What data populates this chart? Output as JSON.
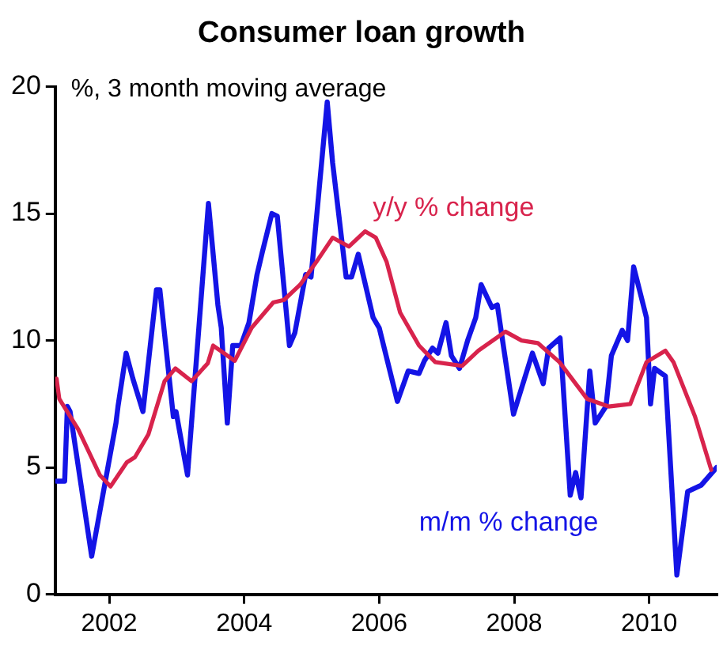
{
  "chart_data": {
    "type": "line",
    "title": "Consumer loan growth",
    "ylabel": "%, 3 month moving average",
    "xlim": [
      2001.2,
      2011.0
    ],
    "xticks": [
      2002,
      2004,
      2006,
      2008,
      2010
    ],
    "ylim": [
      0,
      20
    ],
    "yticks": [
      0,
      5,
      10,
      15,
      20
    ],
    "grid": false,
    "legend": false,
    "marker": "none",
    "line_style": "solid",
    "series": [
      {
        "name": "y/y % change",
        "color": "#d8234c",
        "x": [
          2001.22,
          2001.26,
          2001.54,
          2001.86,
          2002.02,
          2002.26,
          2002.38,
          2002.58,
          2002.82,
          2002.98,
          2003.22,
          2003.46,
          2003.54,
          2003.7,
          2003.86,
          2004.11,
          2004.43,
          2004.59,
          2004.83,
          2005.07,
          2005.31,
          2005.55,
          2005.79,
          2005.95,
          2006.11,
          2006.31,
          2006.59,
          2006.83,
          2007.23,
          2007.47,
          2007.87,
          2008.11,
          2008.35,
          2008.67,
          2009.08,
          2009.4,
          2009.72,
          2009.96,
          2010.24,
          2010.36,
          2010.68,
          2010.92
        ],
        "values": [
          8.5,
          7.7,
          6.5,
          4.7,
          4.25,
          5.2,
          5.4,
          6.3,
          8.4,
          8.9,
          8.4,
          9.1,
          9.8,
          9.5,
          9.2,
          10.5,
          11.5,
          11.6,
          12.2,
          13.1,
          14.05,
          13.7,
          14.3,
          14.05,
          13.1,
          11.1,
          9.8,
          9.15,
          9.0,
          9.6,
          10.35,
          10.0,
          9.9,
          9.15,
          7.7,
          7.4,
          7.5,
          9.15,
          9.6,
          9.15,
          7.0,
          4.9
        ]
      },
      {
        "name": "m/m % change",
        "color": "#1414e6",
        "x": [
          2001.22,
          2001.34,
          2001.38,
          2001.42,
          2001.74,
          2002.1,
          2002.13,
          2002.25,
          2002.35,
          2002.5,
          2002.7,
          2002.75,
          2002.95,
          2002.99,
          2003.16,
          2003.47,
          2003.61,
          2003.66,
          2003.75,
          2003.83,
          2003.95,
          2004.07,
          2004.19,
          2004.27,
          2004.41,
          2004.49,
          2004.67,
          2004.75,
          2004.91,
          2004.99,
          2005.23,
          2005.31,
          2005.51,
          2005.59,
          2005.69,
          2005.91,
          2006.0,
          2006.27,
          2006.43,
          2006.59,
          2006.67,
          2006.79,
          2006.87,
          2006.99,
          2007.07,
          2007.19,
          2007.31,
          2007.43,
          2007.51,
          2007.67,
          2007.75,
          2007.99,
          2008.27,
          2008.43,
          2008.51,
          2008.68,
          2008.83,
          2008.91,
          2008.99,
          2009.12,
          2009.2,
          2009.36,
          2009.44,
          2009.6,
          2009.68,
          2009.77,
          2009.96,
          2010.02,
          2010.08,
          2010.24,
          2010.41,
          2010.57,
          2010.77,
          2011.0
        ],
        "values": [
          4.46,
          4.46,
          7.4,
          7.2,
          1.5,
          6.75,
          7.4,
          9.5,
          8.5,
          7.2,
          12.0,
          12.0,
          7.0,
          7.2,
          4.7,
          15.4,
          11.4,
          10.5,
          6.75,
          9.8,
          9.8,
          10.7,
          12.6,
          13.5,
          15.0,
          14.9,
          9.8,
          10.3,
          12.6,
          12.5,
          19.4,
          17.0,
          12.5,
          12.5,
          13.4,
          10.9,
          10.5,
          7.6,
          8.8,
          8.7,
          9.2,
          9.7,
          9.5,
          10.7,
          9.4,
          8.9,
          10.0,
          10.9,
          12.2,
          11.3,
          11.4,
          7.1,
          9.5,
          8.3,
          9.7,
          10.1,
          3.9,
          4.8,
          3.8,
          8.8,
          6.75,
          7.4,
          9.4,
          10.4,
          10.0,
          12.9,
          10.9,
          7.5,
          8.9,
          8.6,
          0.76,
          4.05,
          4.3,
          5.0
        ]
      }
    ]
  }
}
